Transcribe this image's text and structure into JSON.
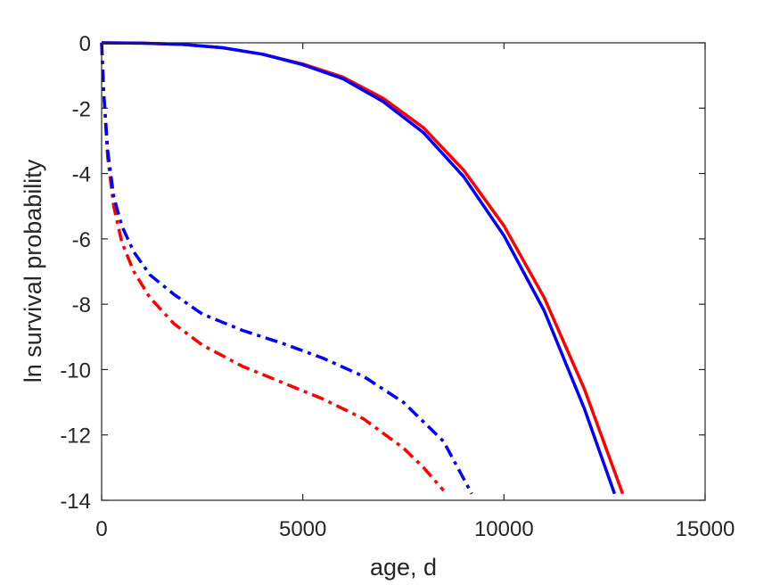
{
  "chart_data": {
    "type": "line",
    "title": "",
    "xlabel": "age, d",
    "ylabel": "ln survival probability",
    "xlim": [
      0,
      15000
    ],
    "ylim": [
      -14,
      0
    ],
    "xticks": [
      0,
      5000,
      10000,
      15000
    ],
    "xtick_labels": [
      "0",
      "5000",
      "10000",
      "15000"
    ],
    "yticks": [
      0,
      -2,
      -4,
      -6,
      -8,
      -10,
      -12,
      -14
    ],
    "ytick_labels": [
      "0",
      "-2",
      "-4",
      "-6",
      "-8",
      "-10",
      "-12",
      "-14"
    ],
    "grid": false,
    "legend": "none",
    "series": [
      {
        "color": "#ff0000",
        "style": "solid",
        "x": [
          0,
          1000,
          2000,
          3000,
          4000,
          5000,
          6000,
          7000,
          8000,
          9000,
          10000,
          11000,
          12000,
          12950
        ],
        "y": [
          0,
          -0.01,
          -0.05,
          -0.15,
          -0.35,
          -0.65,
          -1.05,
          -1.7,
          -2.6,
          -3.9,
          -5.6,
          -7.8,
          -10.6,
          -13.8
        ]
      },
      {
        "color": "#0000ff",
        "style": "solid",
        "x": [
          0,
          1000,
          2000,
          3000,
          4000,
          5000,
          6000,
          7000,
          8000,
          9000,
          10000,
          11000,
          12000,
          12750
        ],
        "y": [
          0,
          -0.01,
          -0.05,
          -0.15,
          -0.35,
          -0.67,
          -1.1,
          -1.8,
          -2.75,
          -4.1,
          -5.9,
          -8.2,
          -11.2,
          -13.8
        ]
      },
      {
        "color": "#ff0000",
        "style": "dashdot",
        "x": [
          0,
          50,
          150,
          300,
          500,
          800,
          1200,
          1800,
          2500,
          3500,
          4500,
          5500,
          6500,
          7500,
          8000,
          8500
        ],
        "y": [
          0,
          -1.5,
          -3.5,
          -5.0,
          -6.1,
          -7.0,
          -7.8,
          -8.6,
          -9.25,
          -9.9,
          -10.4,
          -10.9,
          -11.5,
          -12.4,
          -13.0,
          -13.7
        ]
      },
      {
        "color": "#0000ff",
        "style": "dashdot",
        "x": [
          0,
          50,
          150,
          300,
          500,
          800,
          1200,
          1800,
          2500,
          3500,
          4500,
          5500,
          6500,
          7500,
          8500,
          9200
        ],
        "y": [
          0,
          -1.5,
          -3.3,
          -4.7,
          -5.6,
          -6.4,
          -7.1,
          -7.7,
          -8.3,
          -8.8,
          -9.2,
          -9.65,
          -10.2,
          -11.0,
          -12.2,
          -13.8
        ]
      }
    ]
  }
}
